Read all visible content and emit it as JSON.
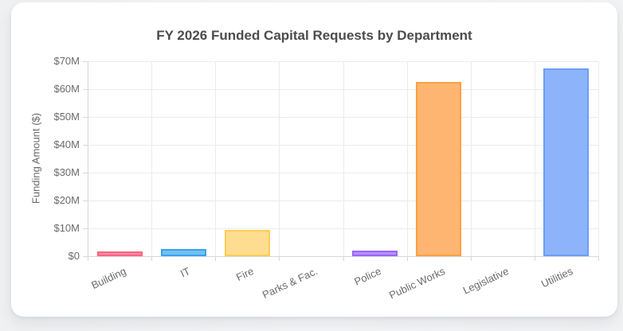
{
  "card": {
    "background": "#ffffff"
  },
  "chart_data": {
    "type": "bar",
    "title": "FY 2026 Funded Capital Requests by Department",
    "xlabel": "",
    "ylabel": "Funding Amount ($)",
    "unit": "millions of dollars",
    "categories": [
      "Building",
      "IT",
      "Fire",
      "Parks & Fac.",
      "Police",
      "Public Works",
      "Legislative",
      "Utilities"
    ],
    "values": [
      1.8,
      2.5,
      9.4,
      0,
      2.0,
      62.7,
      0,
      67.4
    ],
    "ylim": [
      0,
      70
    ],
    "y_tick_step": 10,
    "y_tick_labels": [
      "$0",
      "$10M",
      "$20M",
      "$30M",
      "$40M",
      "$50M",
      "$60M",
      "$70M"
    ],
    "grid": true,
    "legend_position": "none",
    "bar_colors": [
      {
        "fill": "#fb8fa3",
        "border": "#ff6384"
      },
      {
        "fill": "#74c0f0",
        "border": "#36a2eb"
      },
      {
        "fill": "#ffdd90",
        "border": "#ffcd56"
      },
      {
        "fill": "#ffffff",
        "border": "#ffffff"
      },
      {
        "fill": "#b591fa",
        "border": "#9966ff"
      },
      {
        "fill": "#fdb571",
        "border": "#ff9f40"
      },
      {
        "fill": "#ffffff",
        "border": "#ffffff"
      },
      {
        "fill": "#8db4fb",
        "border": "#6b9df5"
      }
    ],
    "style": {
      "title_color": "#4c4c4c",
      "tick_text_color": "#6b6b6b",
      "grid_color": "#ebebeb",
      "baseline_color": "#d7d7d7",
      "tick_mark_color": "#d7d7d7"
    }
  }
}
